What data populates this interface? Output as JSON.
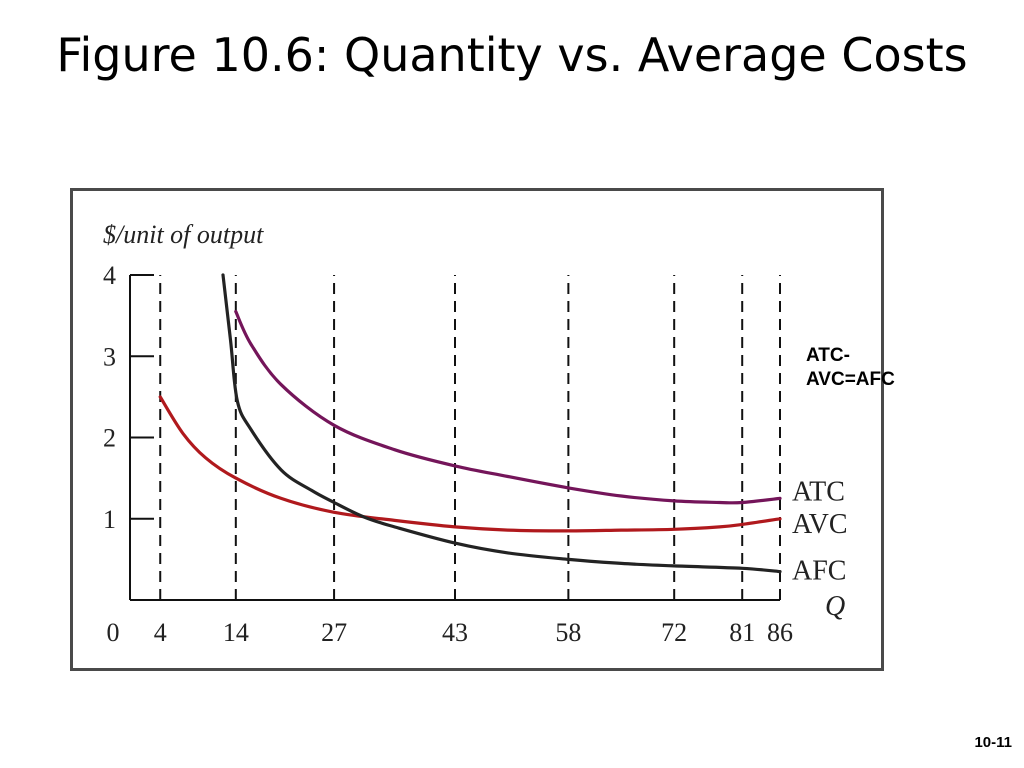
{
  "slide": {
    "title": "Figure 10.6: Quantity vs. Average Costs",
    "side_note_line1": "ATC-",
    "side_note_line2": "AVC=AFC",
    "page_number": "10-11"
  },
  "colors": {
    "atc": "#74155a",
    "avc": "#b0191d",
    "afc": "#232323",
    "axis": "#111111",
    "guide": "#111111"
  },
  "chart_data": {
    "type": "line",
    "title": "",
    "ylabel": "$/unit of output",
    "xlabel": "Q",
    "xlim": [
      0,
      86
    ],
    "ylim": [
      0,
      4
    ],
    "x_ticks": [
      0,
      4,
      14,
      27,
      43,
      58,
      72,
      81,
      86
    ],
    "x_tick_labels": [
      "0",
      "4",
      "14",
      "27",
      "43",
      "58",
      "72",
      "81",
      "86"
    ],
    "y_ticks": [
      1,
      2,
      3,
      4
    ],
    "y_tick_labels": [
      "1",
      "2",
      "3",
      "4"
    ],
    "dashed_guides_at_x": [
      4,
      14,
      27,
      43,
      58,
      72,
      81,
      86
    ],
    "grid": false,
    "series": [
      {
        "name": "ATC",
        "x": [
          14,
          16,
          20,
          27,
          35,
          43,
          50,
          58,
          65,
          72,
          78,
          81,
          86
        ],
        "y": [
          3.55,
          3.15,
          2.65,
          2.15,
          1.85,
          1.65,
          1.52,
          1.38,
          1.28,
          1.22,
          1.2,
          1.2,
          1.25
        ]
      },
      {
        "name": "AVC",
        "x": [
          4,
          7,
          10,
          14,
          20,
          27,
          35,
          43,
          50,
          58,
          65,
          72,
          78,
          81,
          86
        ],
        "y": [
          2.5,
          2.05,
          1.75,
          1.5,
          1.25,
          1.08,
          0.98,
          0.9,
          0.86,
          0.85,
          0.86,
          0.87,
          0.9,
          0.93,
          1.0
        ]
      },
      {
        "name": "AFC",
        "x": [
          12.3,
          13.3,
          14.2,
          16,
          20,
          24,
          27,
          31,
          35,
          43,
          50,
          58,
          65,
          72,
          81,
          86
        ],
        "y": [
          4.0,
          3.2,
          2.45,
          2.1,
          1.6,
          1.35,
          1.2,
          1.02,
          0.9,
          0.7,
          0.58,
          0.5,
          0.45,
          0.42,
          0.39,
          0.35
        ]
      }
    ]
  }
}
